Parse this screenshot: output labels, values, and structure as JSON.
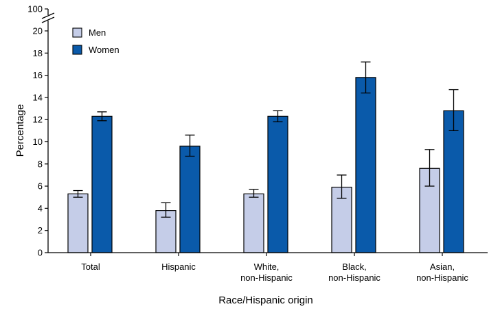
{
  "chart_data": {
    "type": "bar",
    "xlabel": "Race/Hispanic origin",
    "ylabel": "Percentage",
    "categories": [
      [
        "Total"
      ],
      [
        "Hispanic"
      ],
      [
        "White,",
        "non-Hispanic"
      ],
      [
        "Black,",
        "non-Hispanic"
      ],
      [
        "Asian,",
        "non-Hispanic"
      ]
    ],
    "series": [
      {
        "name": "Men",
        "color": "#c5cde8",
        "values": [
          5.3,
          3.8,
          5.3,
          5.9,
          7.6
        ],
        "ci_low": [
          5.0,
          3.2,
          5.0,
          4.9,
          6.0
        ],
        "ci_high": [
          5.6,
          4.5,
          5.7,
          7.0,
          9.3
        ]
      },
      {
        "name": "Women",
        "color": "#0a5aaa",
        "values": [
          12.3,
          9.6,
          12.3,
          15.8,
          12.8
        ],
        "ci_low": [
          11.9,
          8.7,
          11.8,
          14.4,
          11.0
        ],
        "ci_high": [
          12.7,
          10.6,
          12.8,
          17.2,
          14.7
        ]
      }
    ],
    "ylim": [
      0,
      20
    ],
    "yticks": [
      0,
      2,
      4,
      6,
      8,
      10,
      12,
      14,
      16,
      18,
      20
    ],
    "axis_break": {
      "from": 20,
      "to": 100
    },
    "ytick_top": "100",
    "legend_position": "top-left",
    "grid": false
  }
}
